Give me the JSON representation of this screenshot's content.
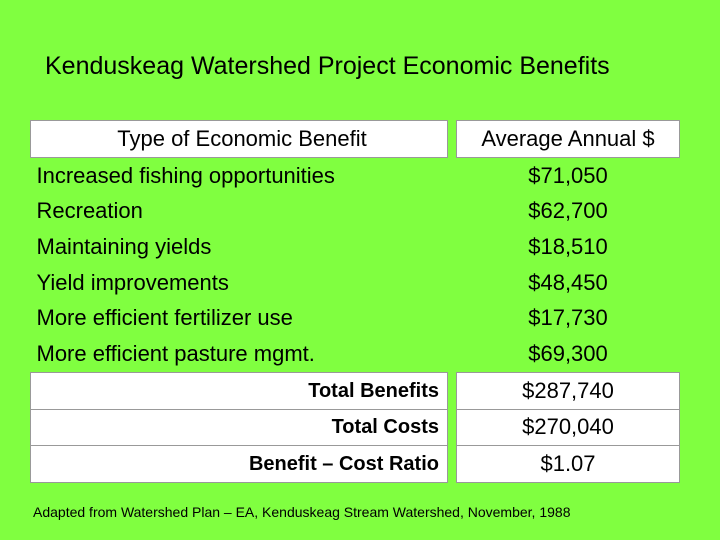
{
  "title": "Kenduskeag Watershed Project Economic Benefits",
  "table": {
    "headers": [
      "Type of Economic Benefit",
      "Average Annual $"
    ],
    "rows": [
      [
        "Increased fishing opportunities",
        "$71,050"
      ],
      [
        "Recreation",
        "$62,700"
      ],
      [
        "Maintaining yields",
        "$18,510"
      ],
      [
        "Yield improvements",
        "$48,450"
      ],
      [
        "More efficient fertilizer use",
        "$17,730"
      ],
      [
        "More efficient pasture mgmt.",
        "$69,300"
      ]
    ],
    "totals": [
      [
        "Total Benefits",
        "$287,740"
      ],
      [
        "Total Costs",
        "$270,040"
      ],
      [
        "Benefit – Cost Ratio",
        "$1.07"
      ]
    ]
  },
  "source": "Adapted from Watershed Plan – EA, Kenduskeag Stream Watershed, November, 1988"
}
